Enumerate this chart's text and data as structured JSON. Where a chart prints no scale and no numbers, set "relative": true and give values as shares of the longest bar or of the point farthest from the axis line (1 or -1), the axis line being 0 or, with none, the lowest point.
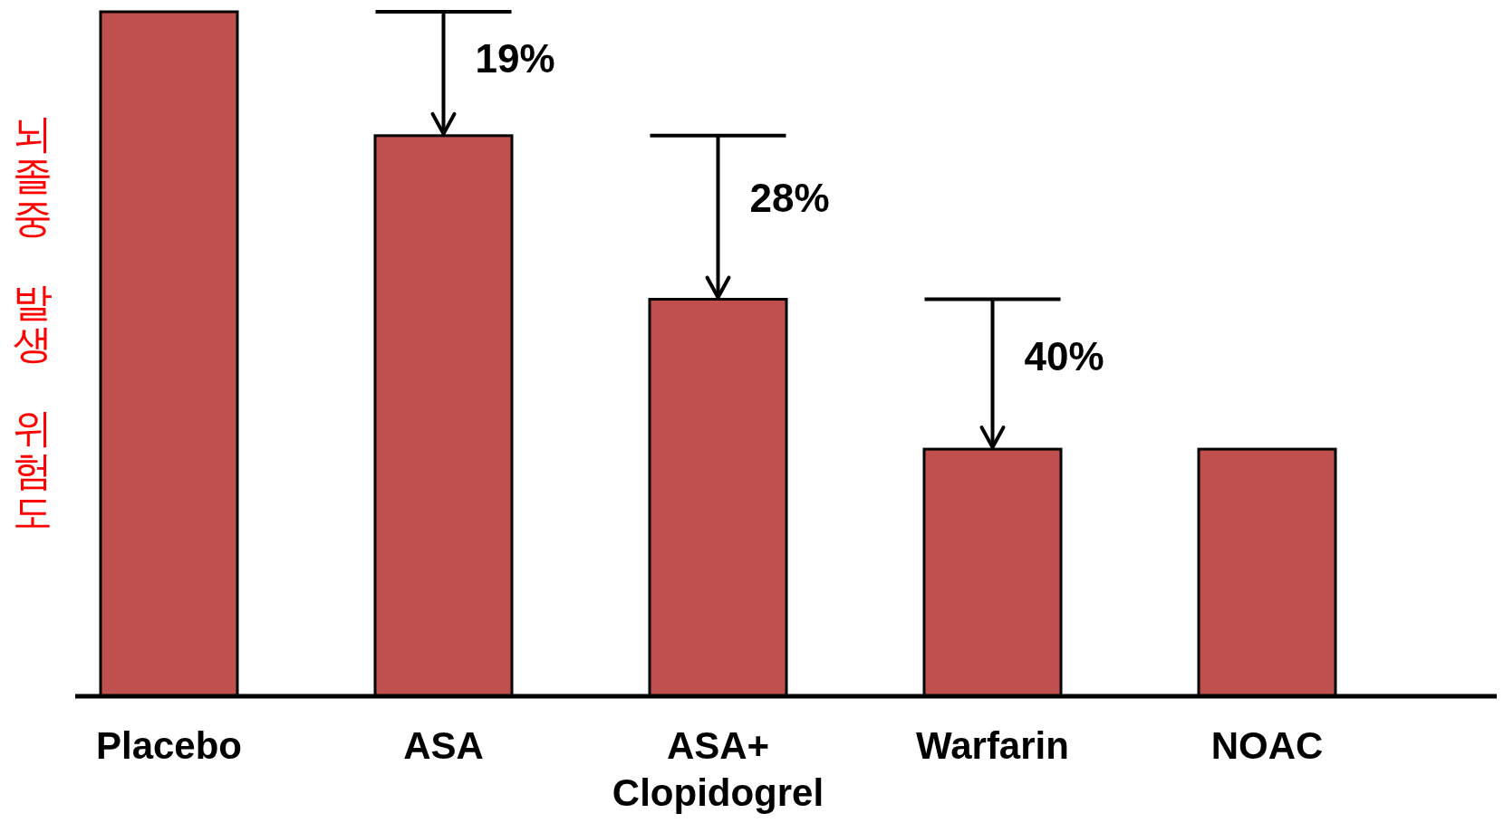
{
  "chart_data": {
    "type": "bar",
    "relative": true,
    "ylabel": "뇌졸중 발생 위험도",
    "categories": [
      "Placebo",
      "ASA",
      "ASA+ Clopidogrel",
      "Warfarin",
      "NOAC"
    ],
    "values": [
      1,
      0.819,
      0.58,
      0.361,
      0.361
    ],
    "color": "#c0504d",
    "annotations": [
      {
        "text": "19%",
        "x": "ASA",
        "y": 0.819
      },
      {
        "text": "28%",
        "x": "ASA+ Clopidogrel",
        "y": 0.58
      },
      {
        "text": "40%",
        "x": "Warfarin",
        "y": 0.361
      }
    ]
  }
}
